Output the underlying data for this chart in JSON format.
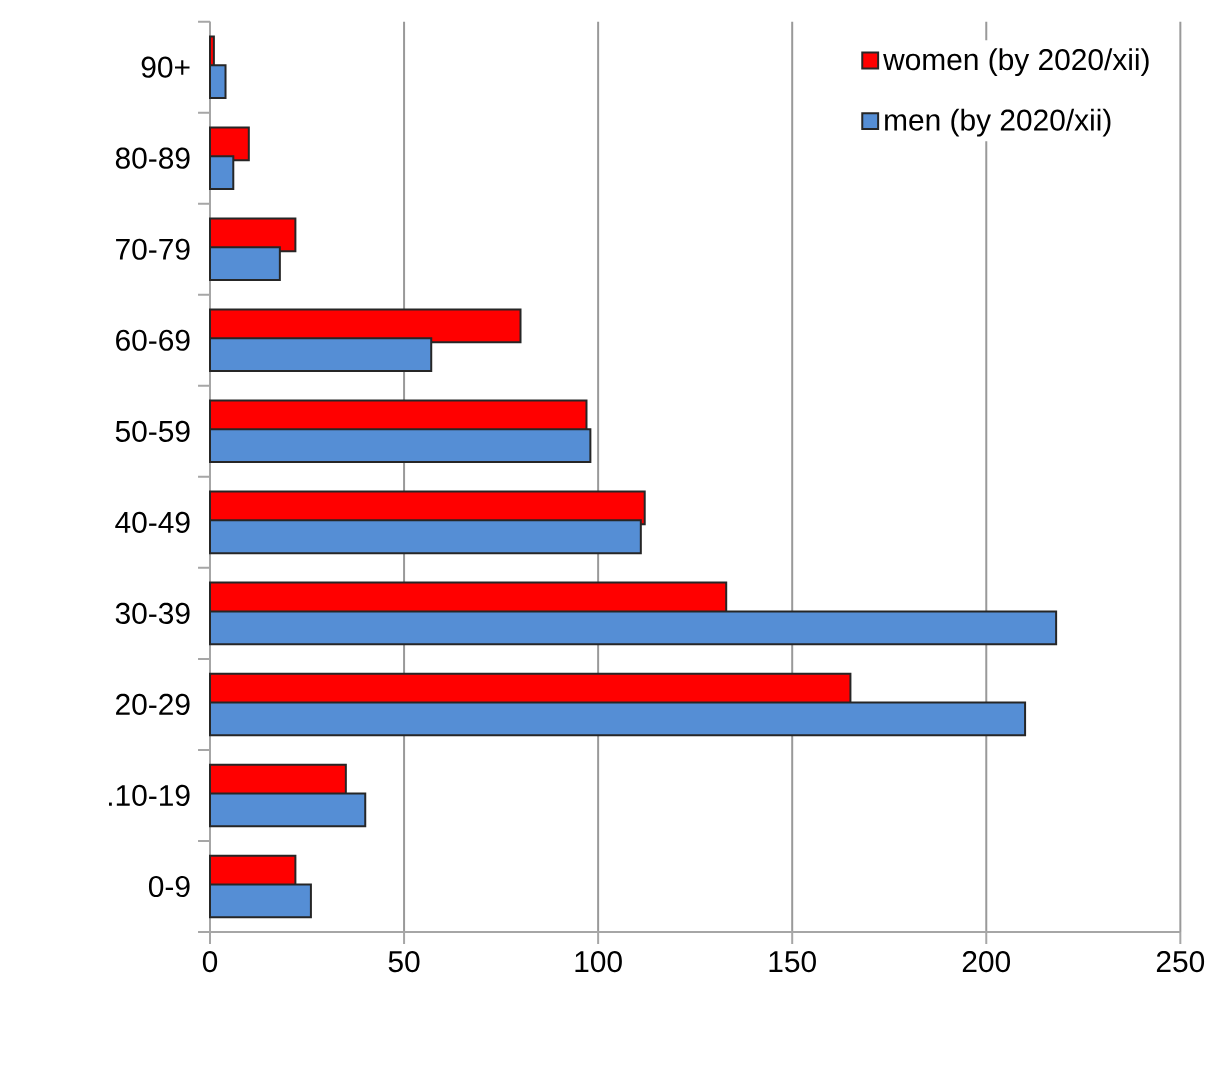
{
  "chart_data": {
    "type": "bar",
    "orientation": "horizontal",
    "categories": [
      "90+",
      "80-89",
      "70-79",
      "60-69",
      "50-59",
      "40-49",
      "30-39",
      "20-29",
      ".10-19",
      "0-9"
    ],
    "series": [
      {
        "name": "women (by 2020/xii)",
        "color": "#ff0000",
        "values": [
          1,
          10,
          22,
          80,
          97,
          112,
          133,
          165,
          35,
          22
        ]
      },
      {
        "name": "men (by 2020/xii)",
        "color": "#558ed5",
        "values": [
          4,
          6,
          18,
          57,
          98,
          111,
          218,
          210,
          40,
          26
        ]
      }
    ],
    "xlim": [
      0,
      250
    ],
    "xticks": [
      0,
      50,
      100,
      150,
      200,
      250
    ],
    "grid": "x",
    "legend": "top right"
  }
}
